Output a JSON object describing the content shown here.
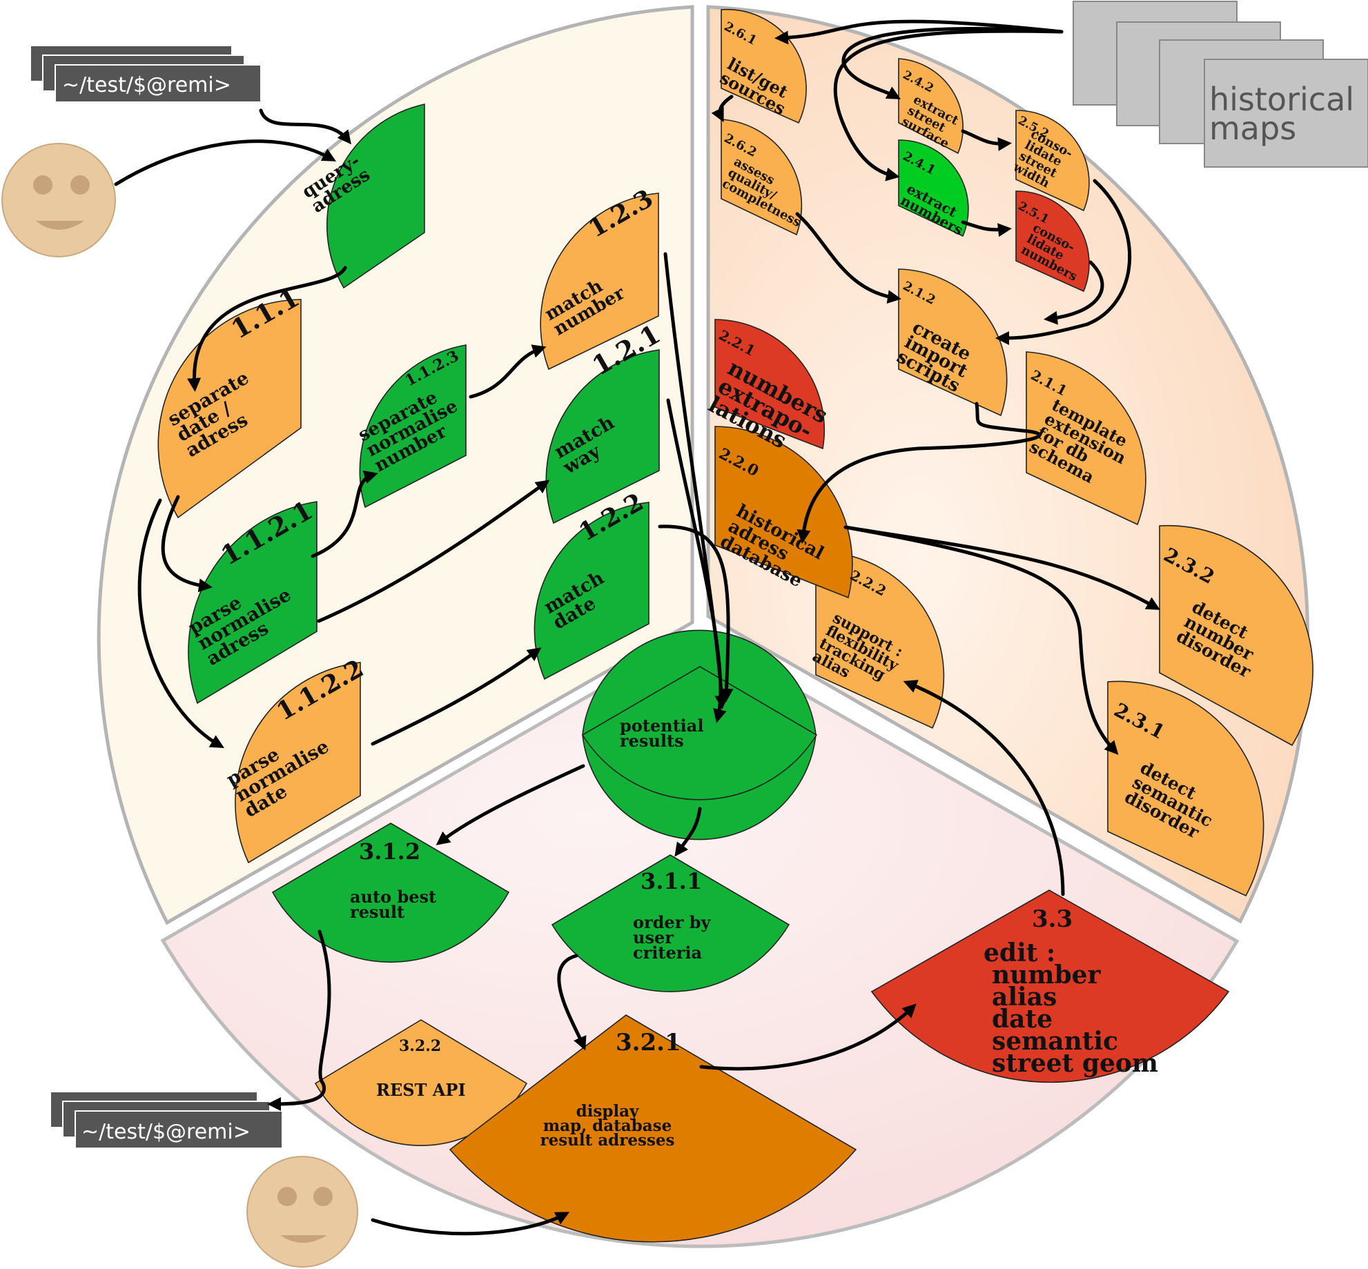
{
  "colors": {
    "orange": "#fbb050",
    "green": "#12b238",
    "bright_green": "#00cc22",
    "red": "#dc3a24",
    "dark_orange": "#df7d00",
    "face": "#e8c9a0",
    "face_features": "#c7a37b",
    "terminal": "#555555",
    "maps_card": "#c4c4c4",
    "sector_left": "#fdf8ea",
    "sector_right": "#fde5d2",
    "sector_bottom": "#fbe6e6"
  },
  "terminal": {
    "prompt": "~/test/$@remi>"
  },
  "maps": {
    "line1": "historical",
    "line2": "maps"
  },
  "nodes": {
    "n0": {
      "id": "",
      "lines": [
        "query-",
        "adress"
      ]
    },
    "n111": {
      "id": "1.1.1",
      "lines": [
        "separate",
        "date /",
        "adress"
      ]
    },
    "n1121": {
      "id": "1.1.2.1",
      "lines": [
        "parse",
        "normalise",
        "adress"
      ]
    },
    "n1122": {
      "id": "1.1.2.2",
      "lines": [
        "parse",
        "normalise",
        "date"
      ]
    },
    "n1123": {
      "id": "1.1.2.3",
      "lines": [
        "separate",
        "normalise",
        "number"
      ]
    },
    "n123": {
      "id": "1.2.3",
      "lines": [
        "match",
        "number"
      ]
    },
    "n121": {
      "id": "1.2.1",
      "lines": [
        "match",
        "way"
      ]
    },
    "n122": {
      "id": "1.2.2",
      "lines": [
        "match",
        "date"
      ]
    },
    "n261": {
      "id": "2.6.1",
      "lines": [
        "list/get",
        "sources"
      ]
    },
    "n262": {
      "id": "2.6.2",
      "lines": [
        "assess",
        "quality/",
        "completness"
      ]
    },
    "n242": {
      "id": "2.4.2",
      "lines": [
        "extract",
        "street",
        "surface"
      ]
    },
    "n241": {
      "id": "2.4.1",
      "lines": [
        "extract",
        "numbers"
      ]
    },
    "n252": {
      "id": "2.5.2",
      "lines": [
        "conso-",
        "lidate",
        "street",
        "width"
      ]
    },
    "n251": {
      "id": "2.5.1",
      "lines": [
        "conso-",
        "lidate",
        "numbers"
      ]
    },
    "n212": {
      "id": "2.1.2",
      "lines": [
        "create",
        "import",
        "scripts"
      ]
    },
    "n211": {
      "id": "2.1.1",
      "lines": [
        "template",
        "extension",
        "for db",
        "schema"
      ]
    },
    "n221": {
      "id": "2.2.1",
      "lines": [
        "numbers",
        "extrapo-",
        "lations"
      ]
    },
    "n220": {
      "id": "2.2.0",
      "lines": [
        "historical",
        "adress",
        "database"
      ]
    },
    "n222": {
      "id": "2.2.2",
      "lines": [
        "support :",
        "flexibility",
        "tracking",
        "alias"
      ]
    },
    "n232": {
      "id": "2.3.2",
      "lines": [
        "detect",
        "number",
        "disorder"
      ]
    },
    "n231": {
      "id": "2.3.1",
      "lines": [
        "detect",
        "semantic",
        "disorder"
      ]
    },
    "npot": {
      "id": "",
      "lines": [
        "potential",
        "results"
      ]
    },
    "n312": {
      "id": "3.1.2",
      "lines": [
        "auto best",
        "result"
      ]
    },
    "n311": {
      "id": "3.1.1",
      "lines": [
        "order by",
        "user",
        "criteria"
      ]
    },
    "n33": {
      "id": "3.3",
      "lines": [
        "edit :",
        "number",
        "alias",
        "date",
        "semantic",
        "street geom"
      ]
    },
    "n322": {
      "id": "3.2.2",
      "lines": [
        "REST API"
      ]
    },
    "n321": {
      "id": "3.2.1",
      "lines": [
        "display",
        "map, database",
        "result adresses"
      ]
    }
  }
}
